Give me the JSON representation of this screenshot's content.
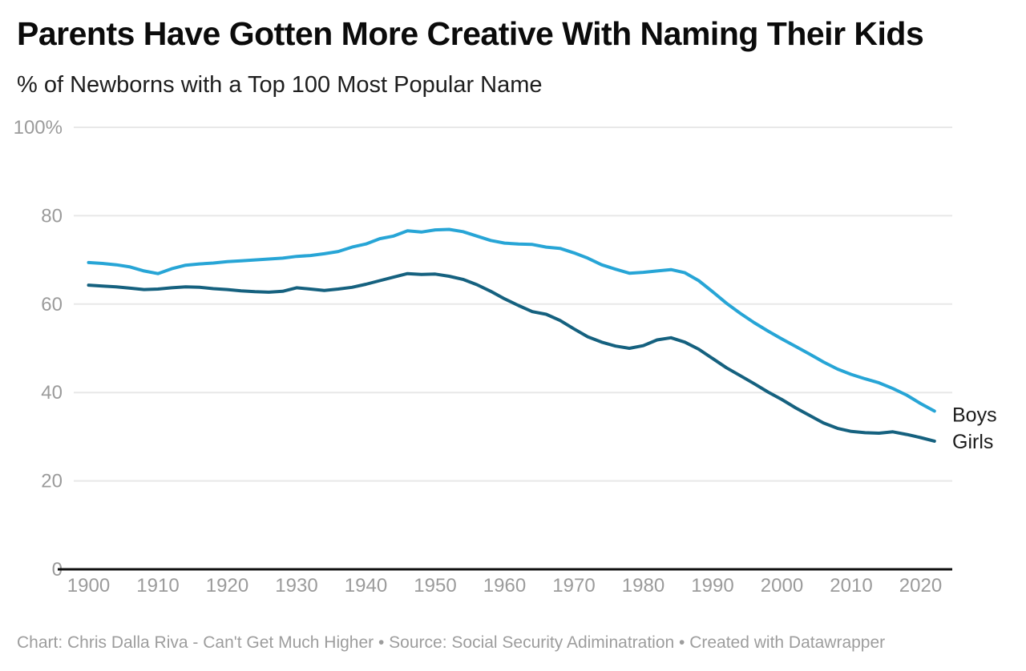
{
  "header": {
    "title": "Parents Have Gotten More Creative With Naming Their Kids",
    "subtitle": "% of Newborns with a Top 100 Most Popular Name"
  },
  "footer": {
    "text": "Chart: Chris Dalla Riva - Can't Get Much Higher • Source: Social Security Adiminatration • Created with Datawrapper"
  },
  "colors": {
    "boys_line": "#27A5D6",
    "girls_line": "#15617F",
    "grid": "#E8E8E8",
    "axis_baseline": "#101010",
    "tick_text": "#9B9B9B",
    "series_label_text": "#1C1C1C",
    "background": "#FFFFFF"
  },
  "chart_data": {
    "type": "line",
    "title": "Parents Have Gotten More Creative With Naming Their Kids",
    "subtitle": "% of Newborns with a Top 100 Most Popular Name",
    "xlabel": "",
    "ylabel": "",
    "xlim": [
      1900,
      2023
    ],
    "ylim": [
      0,
      100
    ],
    "grid": "horizontal",
    "legend_position": "line-end-labels",
    "x_ticks": [
      1900,
      1910,
      1920,
      1930,
      1940,
      1950,
      1960,
      1970,
      1980,
      1990,
      2000,
      2010,
      2020
    ],
    "y_ticks": [
      {
        "value": 100,
        "label": "100%"
      },
      {
        "value": 80,
        "label": "80"
      },
      {
        "value": 60,
        "label": "60"
      },
      {
        "value": 40,
        "label": "40"
      },
      {
        "value": 20,
        "label": "20"
      },
      {
        "value": 0,
        "label": "0"
      }
    ],
    "x": [
      1900,
      1902,
      1904,
      1906,
      1908,
      1910,
      1912,
      1914,
      1916,
      1918,
      1920,
      1922,
      1924,
      1926,
      1928,
      1930,
      1932,
      1934,
      1936,
      1938,
      1940,
      1942,
      1944,
      1946,
      1948,
      1950,
      1952,
      1954,
      1956,
      1958,
      1960,
      1962,
      1964,
      1966,
      1968,
      1970,
      1972,
      1974,
      1976,
      1978,
      1980,
      1982,
      1984,
      1986,
      1988,
      1990,
      1992,
      1994,
      1996,
      1998,
      2000,
      2002,
      2004,
      2006,
      2008,
      2010,
      2012,
      2014,
      2016,
      2018,
      2020,
      2022
    ],
    "series": [
      {
        "name": "Boys",
        "color": "#27A5D6",
        "values": [
          69.4,
          69.2,
          68.9,
          68.4,
          67.5,
          66.9,
          68.0,
          68.8,
          69.1,
          69.3,
          69.6,
          69.8,
          70.0,
          70.2,
          70.4,
          70.8,
          71.0,
          71.4,
          71.9,
          72.9,
          73.6,
          74.8,
          75.4,
          76.6,
          76.3,
          76.8,
          76.9,
          76.4,
          75.4,
          74.4,
          73.8,
          73.6,
          73.5,
          72.9,
          72.6,
          71.6,
          70.4,
          68.9,
          67.9,
          67.0,
          67.2,
          67.5,
          67.8,
          67.1,
          65.3,
          62.8,
          60.2,
          57.9,
          55.8,
          53.9,
          52.1,
          50.4,
          48.7,
          46.9,
          45.3,
          44.1,
          43.1,
          42.2,
          40.9,
          39.4,
          37.5,
          35.8
        ]
      },
      {
        "name": "Girls",
        "color": "#15617F",
        "values": [
          64.3,
          64.1,
          63.9,
          63.6,
          63.3,
          63.4,
          63.7,
          63.9,
          63.8,
          63.5,
          63.3,
          63.0,
          62.8,
          62.7,
          62.9,
          63.7,
          63.4,
          63.1,
          63.4,
          63.8,
          64.5,
          65.3,
          66.1,
          66.9,
          66.7,
          66.8,
          66.3,
          65.6,
          64.4,
          62.9,
          61.2,
          59.7,
          58.3,
          57.7,
          56.3,
          54.4,
          52.6,
          51.4,
          50.5,
          50.0,
          50.6,
          51.9,
          52.4,
          51.4,
          49.8,
          47.7,
          45.6,
          43.8,
          42.0,
          40.1,
          38.4,
          36.5,
          34.8,
          33.1,
          31.9,
          31.2,
          30.9,
          30.8,
          31.1,
          30.5,
          29.8,
          29.0
        ]
      }
    ]
  }
}
